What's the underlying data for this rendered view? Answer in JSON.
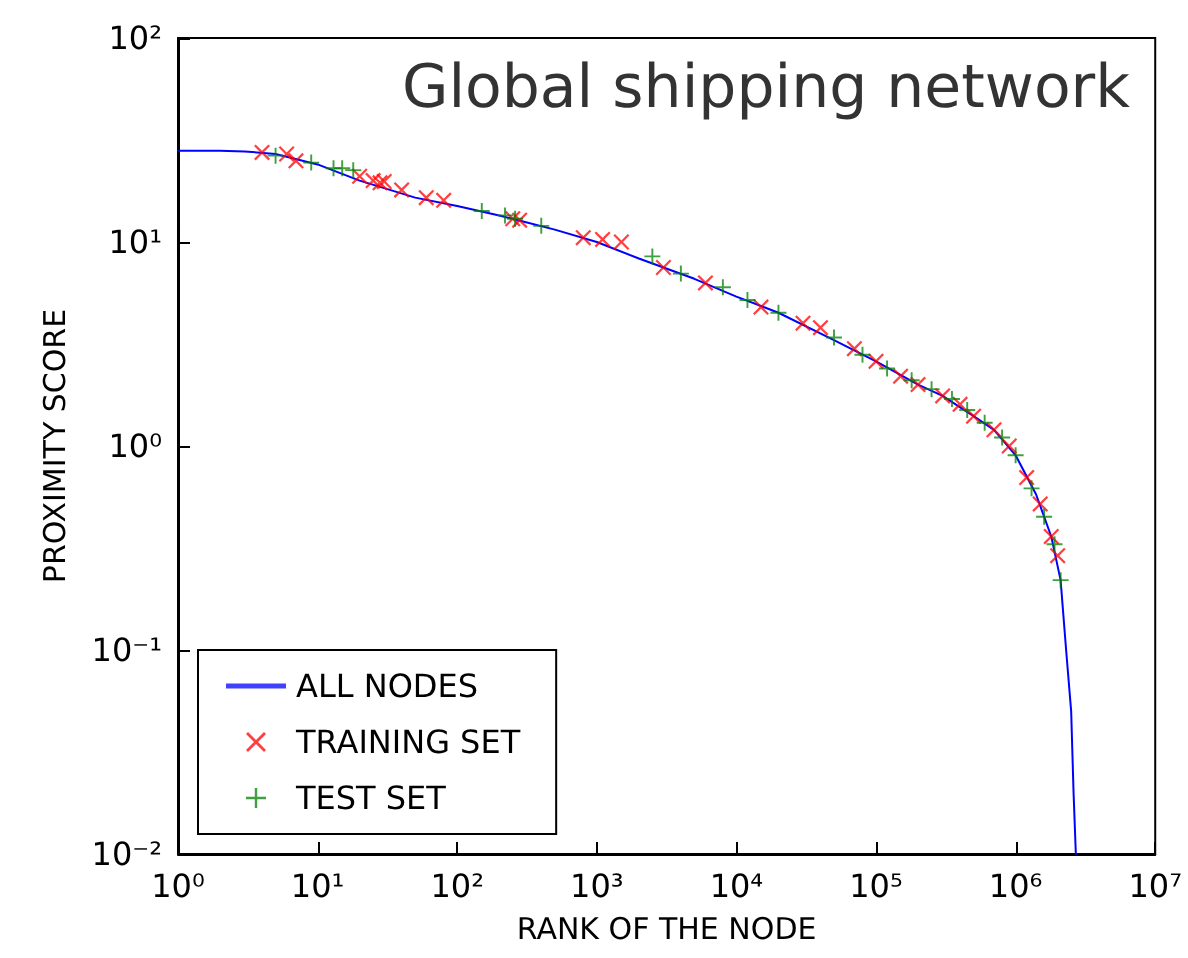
{
  "chart_data": {
    "type": "line",
    "title": "Global shipping network",
    "xlabel": "RANK OF THE NODE",
    "ylabel": "PROXIMITY SCORE",
    "log": "xy",
    "grid": false,
    "legend": "bottom left",
    "xlim": [
      1,
      10000000
    ],
    "xticks": [
      {
        "value": 1,
        "label": "10⁰"
      },
      {
        "value": 10,
        "label": "10¹"
      },
      {
        "value": 100,
        "label": "10²"
      },
      {
        "value": 1000,
        "label": "10³"
      },
      {
        "value": 10000,
        "label": "10⁴"
      },
      {
        "value": 100000,
        "label": "10⁵"
      },
      {
        "value": 1000000,
        "label": "10⁶"
      },
      {
        "value": 10000000,
        "label": "10⁷"
      }
    ],
    "ylim": [
      0.01,
      100
    ],
    "yticks": [
      {
        "value": 0.01,
        "label": "10⁻²"
      },
      {
        "value": 0.1,
        "label": "10⁻¹"
      },
      {
        "value": 1,
        "label": "10⁰"
      },
      {
        "value": 10,
        "label": "10¹"
      },
      {
        "value": 100,
        "label": "10²"
      }
    ],
    "series": [
      {
        "name": "ALL NODES",
        "color": "#0000ff",
        "marker": "none",
        "line_style": "solid",
        "x": [
          1,
          2,
          3,
          5,
          10,
          20,
          50,
          100,
          200,
          500,
          1000,
          2000,
          5000,
          10000,
          20000,
          50000,
          100000,
          200000,
          300000,
          500000,
          700000,
          1000000,
          1400000,
          1800000,
          2100000,
          2300000,
          2500000,
          2600000,
          2700000
        ],
        "values": [
          28,
          28,
          27.8,
          27,
          24,
          20,
          16.5,
          15,
          13.5,
          11.5,
          10,
          8.3,
          6.6,
          5.4,
          4.5,
          3.3,
          2.6,
          2.0,
          1.76,
          1.4,
          1.2,
          0.9,
          0.58,
          0.36,
          0.22,
          0.1,
          0.05,
          0.02,
          0.01
        ]
      },
      {
        "name": "TRAINING SET",
        "type": "scatter",
        "color": "#ff0000",
        "marker": "cross",
        "x": [
          4,
          6,
          7,
          20,
          25,
          28,
          30,
          40,
          60,
          80,
          250,
          280,
          800,
          1100,
          1500,
          3000,
          6000,
          15000,
          30000,
          40000,
          70000,
          100000,
          150000,
          200000,
          300000,
          400000,
          500000,
          700000,
          900000,
          1200000,
          1500000,
          1800000,
          2000000
        ],
        "values": [
          27.5,
          27,
          25,
          21,
          20,
          19.5,
          19.8,
          18,
          16.5,
          16,
          13,
          12.8,
          10.5,
          10.3,
          10,
          7.5,
          6.3,
          4.8,
          4.0,
          3.8,
          3.0,
          2.6,
          2.2,
          2.0,
          1.76,
          1.6,
          1.4,
          1.2,
          1.0,
          0.7,
          0.52,
          0.36,
          0.29
        ]
      },
      {
        "name": "TEST SET",
        "type": "scatter",
        "color": "#008000",
        "marker": "plus",
        "x": [
          5,
          9,
          13,
          15,
          18,
          150,
          220,
          260,
          400,
          2500,
          4000,
          8000,
          12000,
          20000,
          50000,
          80000,
          120000,
          180000,
          250000,
          350000,
          450000,
          600000,
          800000,
          1000000,
          1300000,
          1600000,
          1900000,
          2100000
        ],
        "values": [
          26.5,
          24.5,
          23,
          23,
          22.5,
          14.2,
          13.5,
          13,
          12,
          8.5,
          7,
          6,
          5.2,
          4.5,
          3.4,
          2.8,
          2.4,
          2.1,
          1.9,
          1.7,
          1.5,
          1.3,
          1.1,
          0.9,
          0.62,
          0.45,
          0.33,
          0.22
        ]
      }
    ]
  }
}
